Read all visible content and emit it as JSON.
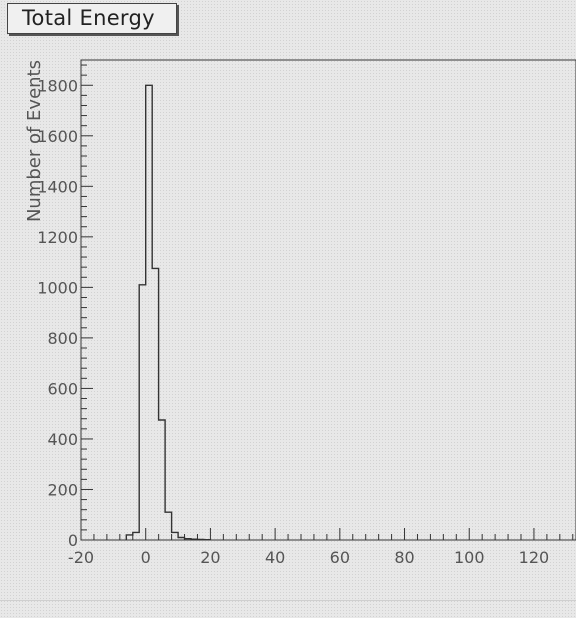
{
  "chart_data": {
    "type": "bar",
    "title": "Total Energy",
    "xlabel": "",
    "ylabel": "Number of Events",
    "xlim": [
      -20,
      133
    ],
    "ylim": [
      0,
      1900
    ],
    "x_ticks": [
      -20,
      0,
      20,
      40,
      60,
      80,
      100,
      120
    ],
    "x_tick_labels": [
      "-20",
      "0",
      "20",
      "40",
      "60",
      "80",
      "100",
      "120"
    ],
    "y_ticks": [
      0,
      200,
      400,
      600,
      800,
      1000,
      1200,
      1400,
      1600,
      1800
    ],
    "y_tick_labels": [
      "0",
      "200",
      "400",
      "600",
      "800",
      "1000",
      "1200",
      "1400",
      "1600",
      "1800"
    ],
    "bin_width": 2,
    "bins": [
      {
        "x0": -6,
        "value": 20
      },
      {
        "x0": -4,
        "value": 30
      },
      {
        "x0": -2,
        "value": 1010
      },
      {
        "x0": 0,
        "value": 1800
      },
      {
        "x0": 2,
        "value": 1075
      },
      {
        "x0": 4,
        "value": 475
      },
      {
        "x0": 6,
        "value": 110
      },
      {
        "x0": 8,
        "value": 30
      },
      {
        "x0": 10,
        "value": 10
      },
      {
        "x0": 12,
        "value": 5
      },
      {
        "x0": 14,
        "value": 3
      },
      {
        "x0": 16,
        "value": 2
      },
      {
        "x0": 18,
        "value": 1
      }
    ],
    "grid": false,
    "legend": "none"
  }
}
